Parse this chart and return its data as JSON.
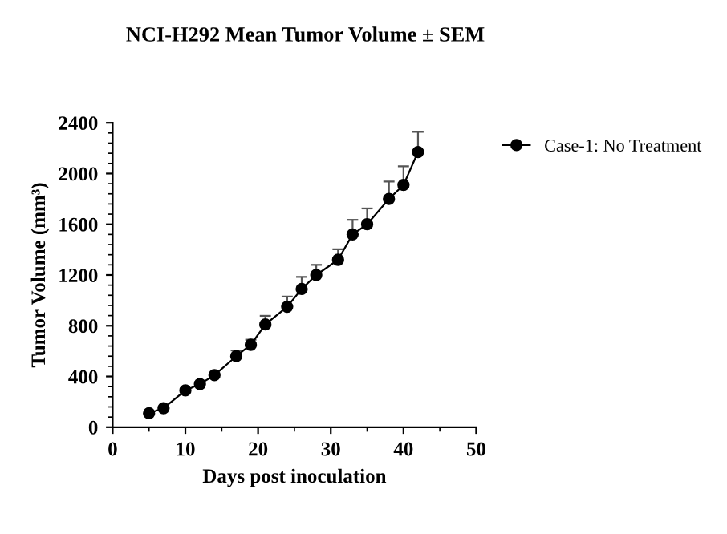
{
  "chart_data": {
    "type": "line",
    "title": "NCI-H292 Mean Tumor Volume ± SEM",
    "xlabel": "Days post inoculation",
    "ylabel": "Tumor Volume (mm³)",
    "x": [
      5,
      7,
      10,
      12,
      14,
      17,
      19,
      21,
      24,
      26,
      28,
      31,
      33,
      35,
      38,
      40,
      42
    ],
    "series": [
      {
        "name": "Case-1: No Treatment",
        "color": "#000000",
        "values": [
          110,
          150,
          290,
          340,
          410,
          560,
          650,
          810,
          950,
          1090,
          1200,
          1320,
          1520,
          1600,
          1800,
          1910,
          2170
        ],
        "errors": [
          10,
          12,
          15,
          15,
          15,
          45,
          40,
          68,
          80,
          95,
          80,
          83,
          115,
          125,
          137,
          148,
          159
        ]
      }
    ],
    "xlim": [
      0,
      50
    ],
    "xticks": [
      0,
      10,
      20,
      30,
      40,
      50
    ],
    "ylim": [
      0,
      2400
    ],
    "yticks": [
      0,
      400,
      800,
      1200,
      1600,
      2000,
      2400
    ],
    "marker": "circle",
    "line_style": "solid",
    "legend": "top right",
    "grid": false
  }
}
